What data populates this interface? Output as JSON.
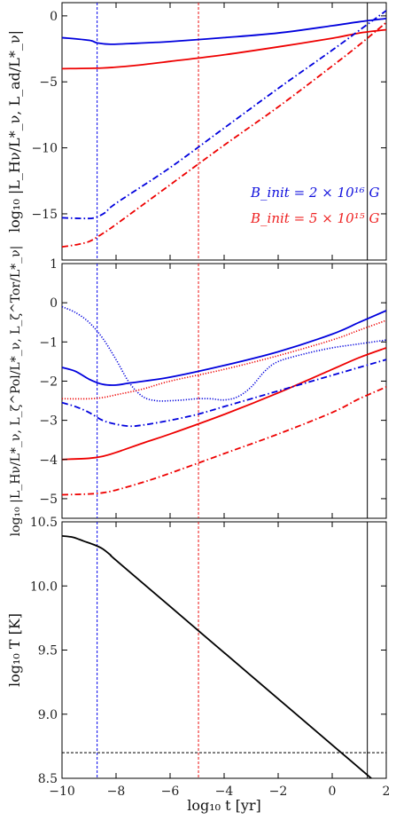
{
  "chart_data": [
    {
      "type": "line",
      "panel": "top",
      "ylabel": "log₁₀ |L_Hν/L*_ν, L_ad/L*_ν|",
      "xlim": [
        -10,
        2
      ],
      "ylim": [
        -18.5,
        1
      ],
      "yticks": [
        0,
        -5,
        -10,
        -15
      ],
      "ytick_labels": [
        "0",
        "−5",
        "−10",
        "−15"
      ],
      "vlines": [
        {
          "x": -8.7,
          "color": "#0000ee",
          "style": "dashed"
        },
        {
          "x": -4.95,
          "color": "#ee1111",
          "style": "dashed"
        },
        {
          "x": 1.3,
          "color": "#000000",
          "style": "solid"
        }
      ],
      "legend": {
        "placement": "lower-right",
        "entries": [
          {
            "text": "B_init = 2 × 10¹⁶ G",
            "color": "#1111dd"
          },
          {
            "text": "B_init = 5 × 10¹⁵ G",
            "color": "#ee2222"
          }
        ]
      },
      "series": [
        {
          "color": "#0000dd",
          "style": "solid",
          "x": [
            -10,
            -9,
            -8.7,
            -8.2,
            -7.5,
            -6,
            -4,
            -2,
            0,
            1,
            2
          ],
          "y": [
            -1.65,
            -1.85,
            -2.05,
            -2.15,
            -2.1,
            -1.95,
            -1.65,
            -1.3,
            -0.75,
            -0.45,
            -0.2
          ]
        },
        {
          "color": "#ee0000",
          "style": "solid",
          "x": [
            -10,
            -8.5,
            -7.5,
            -6,
            -4,
            -2,
            0,
            1,
            2
          ],
          "y": [
            -4.0,
            -3.95,
            -3.8,
            -3.45,
            -2.95,
            -2.35,
            -1.7,
            -1.3,
            -1.05
          ]
        },
        {
          "color": "#0000dd",
          "style": "dashdot",
          "x": [
            -10,
            -9.2,
            -8.8,
            -8.4,
            -8,
            -6,
            -4,
            -2,
            0,
            1,
            2
          ],
          "y": [
            -15.3,
            -15.35,
            -15.3,
            -14.9,
            -14.2,
            -11.5,
            -8.5,
            -5.5,
            -2.6,
            -1.1,
            0.4
          ]
        },
        {
          "color": "#ee0000",
          "style": "dashdot",
          "x": [
            -10,
            -9.5,
            -9,
            -8.5,
            -8,
            -6,
            -4,
            -2,
            0,
            1,
            2
          ],
          "y": [
            -17.5,
            -17.35,
            -17.1,
            -16.5,
            -15.8,
            -12.8,
            -9.8,
            -6.9,
            -3.8,
            -2.2,
            -0.5
          ]
        }
      ]
    },
    {
      "type": "line",
      "panel": "middle",
      "ylabel": "log₁₀ |L_Hν/L*_ν, L_ζ^Pol/L*_ν, L_ζ^Tor/L*_ν|",
      "xlim": [
        -10,
        2
      ],
      "ylim": [
        -5.5,
        1
      ],
      "yticks": [
        1,
        0,
        -1,
        -2,
        -3,
        -4,
        -5
      ],
      "ytick_labels": [
        "1",
        "0",
        "−1",
        "−2",
        "−3",
        "−4",
        "−5"
      ],
      "vlines": [
        {
          "x": -8.7,
          "color": "#0000ee",
          "style": "dashed"
        },
        {
          "x": -4.95,
          "color": "#ee1111",
          "style": "dashed"
        },
        {
          "x": 1.3,
          "color": "#000000",
          "style": "solid"
        }
      ],
      "series": [
        {
          "color": "#0000dd",
          "style": "solid",
          "x": [
            -10,
            -9.5,
            -9,
            -8.5,
            -8,
            -7.5,
            -6,
            -4,
            -2,
            0,
            1,
            2
          ],
          "y": [
            -1.65,
            -1.75,
            -1.95,
            -2.08,
            -2.1,
            -2.05,
            -1.9,
            -1.6,
            -1.25,
            -0.8,
            -0.5,
            -0.2
          ]
        },
        {
          "color": "#ee0000",
          "style": "solid",
          "x": [
            -10,
            -9,
            -8.5,
            -8,
            -7,
            -6,
            -4,
            -2,
            0,
            1,
            2
          ],
          "y": [
            -4.0,
            -3.97,
            -3.92,
            -3.82,
            -3.58,
            -3.35,
            -2.85,
            -2.3,
            -1.7,
            -1.4,
            -1.15
          ]
        },
        {
          "color": "#0000dd",
          "style": "dotted",
          "x": [
            -10,
            -9.5,
            -9,
            -8.5,
            -8,
            -7.5,
            -7,
            -6.5,
            -6,
            -5.5,
            -5,
            -4.5,
            -4,
            -3.5,
            -3,
            -2.5,
            -2,
            -1,
            0,
            1,
            2
          ],
          "y": [
            -0.1,
            -0.25,
            -0.5,
            -0.9,
            -1.45,
            -2.05,
            -2.4,
            -2.5,
            -2.5,
            -2.48,
            -2.45,
            -2.45,
            -2.48,
            -2.4,
            -2.15,
            -1.75,
            -1.5,
            -1.3,
            -1.15,
            -1.05,
            -0.95
          ]
        },
        {
          "color": "#ee0000",
          "style": "dotted",
          "x": [
            -10,
            -9,
            -8.5,
            -8,
            -7,
            -6,
            -4,
            -2,
            0,
            1,
            2
          ],
          "y": [
            -2.45,
            -2.45,
            -2.42,
            -2.35,
            -2.2,
            -2.0,
            -1.7,
            -1.35,
            -0.95,
            -0.7,
            -0.45
          ]
        },
        {
          "color": "#0000dd",
          "style": "dashdot",
          "x": [
            -10,
            -9.5,
            -9,
            -8.5,
            -8,
            -7.5,
            -7,
            -6,
            -5,
            -4,
            -3,
            -2,
            -1,
            0,
            1,
            2
          ],
          "y": [
            -2.55,
            -2.65,
            -2.8,
            -3.0,
            -3.1,
            -3.15,
            -3.12,
            -3.0,
            -2.85,
            -2.65,
            -2.45,
            -2.25,
            -2.05,
            -1.85,
            -1.65,
            -1.45
          ]
        },
        {
          "color": "#ee0000",
          "style": "dashdot",
          "x": [
            -10,
            -9,
            -8.5,
            -8,
            -7,
            -6,
            -4,
            -2,
            0,
            1,
            2
          ],
          "y": [
            -4.9,
            -4.88,
            -4.85,
            -4.78,
            -4.58,
            -4.35,
            -3.85,
            -3.35,
            -2.8,
            -2.45,
            -2.15
          ]
        }
      ]
    },
    {
      "type": "line",
      "panel": "bottom",
      "ylabel": "log₁₀ T [K]",
      "xlabel": "log₁₀ t [yr]",
      "xlim": [
        -10,
        2
      ],
      "ylim": [
        8.5,
        10.5
      ],
      "yticks": [
        10.5,
        10.0,
        9.5,
        9.0,
        8.5
      ],
      "ytick_labels": [
        "10.5",
        "10.0",
        "9.5",
        "9.0",
        "8.5"
      ],
      "xticks": [
        -10,
        -8,
        -6,
        -4,
        -2,
        0,
        2
      ],
      "xtick_labels": [
        "−10",
        "−8",
        "−6",
        "−4",
        "−2",
        "0",
        "2"
      ],
      "hline": {
        "y": 8.7,
        "color": "#000000",
        "style": "dashed"
      },
      "vlines": [
        {
          "x": -8.7,
          "color": "#0000ee",
          "style": "dashed"
        },
        {
          "x": -4.95,
          "color": "#ee1111",
          "style": "dashed"
        },
        {
          "x": 1.3,
          "color": "#000000",
          "style": "solid"
        }
      ],
      "series": [
        {
          "color": "#000000",
          "style": "solid",
          "x": [
            -10,
            -9.6,
            -9.2,
            -8.8,
            -8.5,
            -8.2,
            -8,
            -6,
            -4,
            -2,
            0,
            1,
            2
          ],
          "y": [
            10.39,
            10.38,
            10.35,
            10.32,
            10.29,
            10.24,
            10.2,
            9.84,
            9.48,
            9.12,
            8.76,
            8.58,
            8.4
          ]
        }
      ]
    }
  ]
}
